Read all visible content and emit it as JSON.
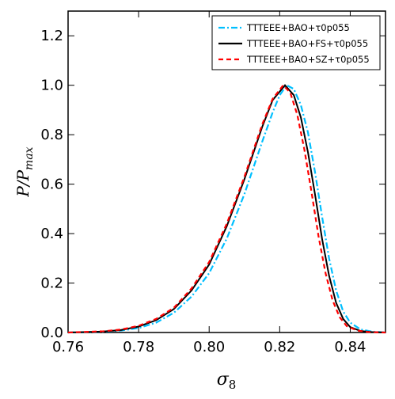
{
  "chart_data": {
    "type": "line",
    "title": "",
    "xlabel": "σ8",
    "ylabel": "P/Pmax",
    "xlim": [
      0.76,
      0.85
    ],
    "ylim": [
      0.0,
      1.3
    ],
    "xticks": [
      "0.76",
      "0.78",
      "0.80",
      "0.82",
      "0.84"
    ],
    "yticks": [
      "0.0",
      "0.2",
      "0.4",
      "0.6",
      "0.8",
      "1.0",
      "1.2"
    ],
    "grid": false,
    "legend_position": "top-right",
    "series": [
      {
        "name": "TTTEEE+BAO+τ0p055",
        "color": "#00bfff",
        "linestyle": "dashdot",
        "x": [
          0.76,
          0.77,
          0.775,
          0.78,
          0.785,
          0.79,
          0.795,
          0.8,
          0.805,
          0.81,
          0.815,
          0.818,
          0.82,
          0.822,
          0.824,
          0.826,
          0.828,
          0.83,
          0.832,
          0.834,
          0.836,
          0.838,
          0.84,
          0.843,
          0.846,
          0.85
        ],
        "y": [
          0.0,
          0.003,
          0.008,
          0.018,
          0.04,
          0.08,
          0.145,
          0.24,
          0.38,
          0.56,
          0.77,
          0.89,
          0.96,
          1.0,
          0.985,
          0.92,
          0.81,
          0.65,
          0.47,
          0.3,
          0.17,
          0.085,
          0.04,
          0.012,
          0.004,
          0.0
        ]
      },
      {
        "name": "TTTEEE+BAO+FS+τ0p055",
        "color": "#000000",
        "linestyle": "solid",
        "x": [
          0.76,
          0.77,
          0.775,
          0.78,
          0.785,
          0.79,
          0.795,
          0.8,
          0.805,
          0.81,
          0.815,
          0.818,
          0.8215,
          0.824,
          0.826,
          0.828,
          0.83,
          0.832,
          0.834,
          0.836,
          0.838,
          0.84,
          0.843,
          0.846,
          0.85
        ],
        "y": [
          0.0,
          0.004,
          0.01,
          0.024,
          0.05,
          0.095,
          0.17,
          0.275,
          0.43,
          0.62,
          0.83,
          0.94,
          1.0,
          0.96,
          0.87,
          0.73,
          0.56,
          0.38,
          0.23,
          0.12,
          0.055,
          0.022,
          0.006,
          0.002,
          0.0
        ]
      },
      {
        "name": "TTTEEE+BAO+SZ+τ0p055",
        "color": "#ff0000",
        "linestyle": "dashed",
        "x": [
          0.76,
          0.77,
          0.775,
          0.78,
          0.785,
          0.79,
          0.795,
          0.8,
          0.805,
          0.81,
          0.815,
          0.818,
          0.821,
          0.823,
          0.825,
          0.827,
          0.829,
          0.831,
          0.833,
          0.835,
          0.837,
          0.839,
          0.842,
          0.845,
          0.85
        ],
        "y": [
          0.0,
          0.005,
          0.012,
          0.027,
          0.055,
          0.1,
          0.178,
          0.285,
          0.44,
          0.63,
          0.84,
          0.945,
          1.0,
          0.97,
          0.88,
          0.74,
          0.57,
          0.39,
          0.24,
          0.13,
          0.062,
          0.026,
          0.008,
          0.002,
          0.0
        ]
      }
    ]
  }
}
